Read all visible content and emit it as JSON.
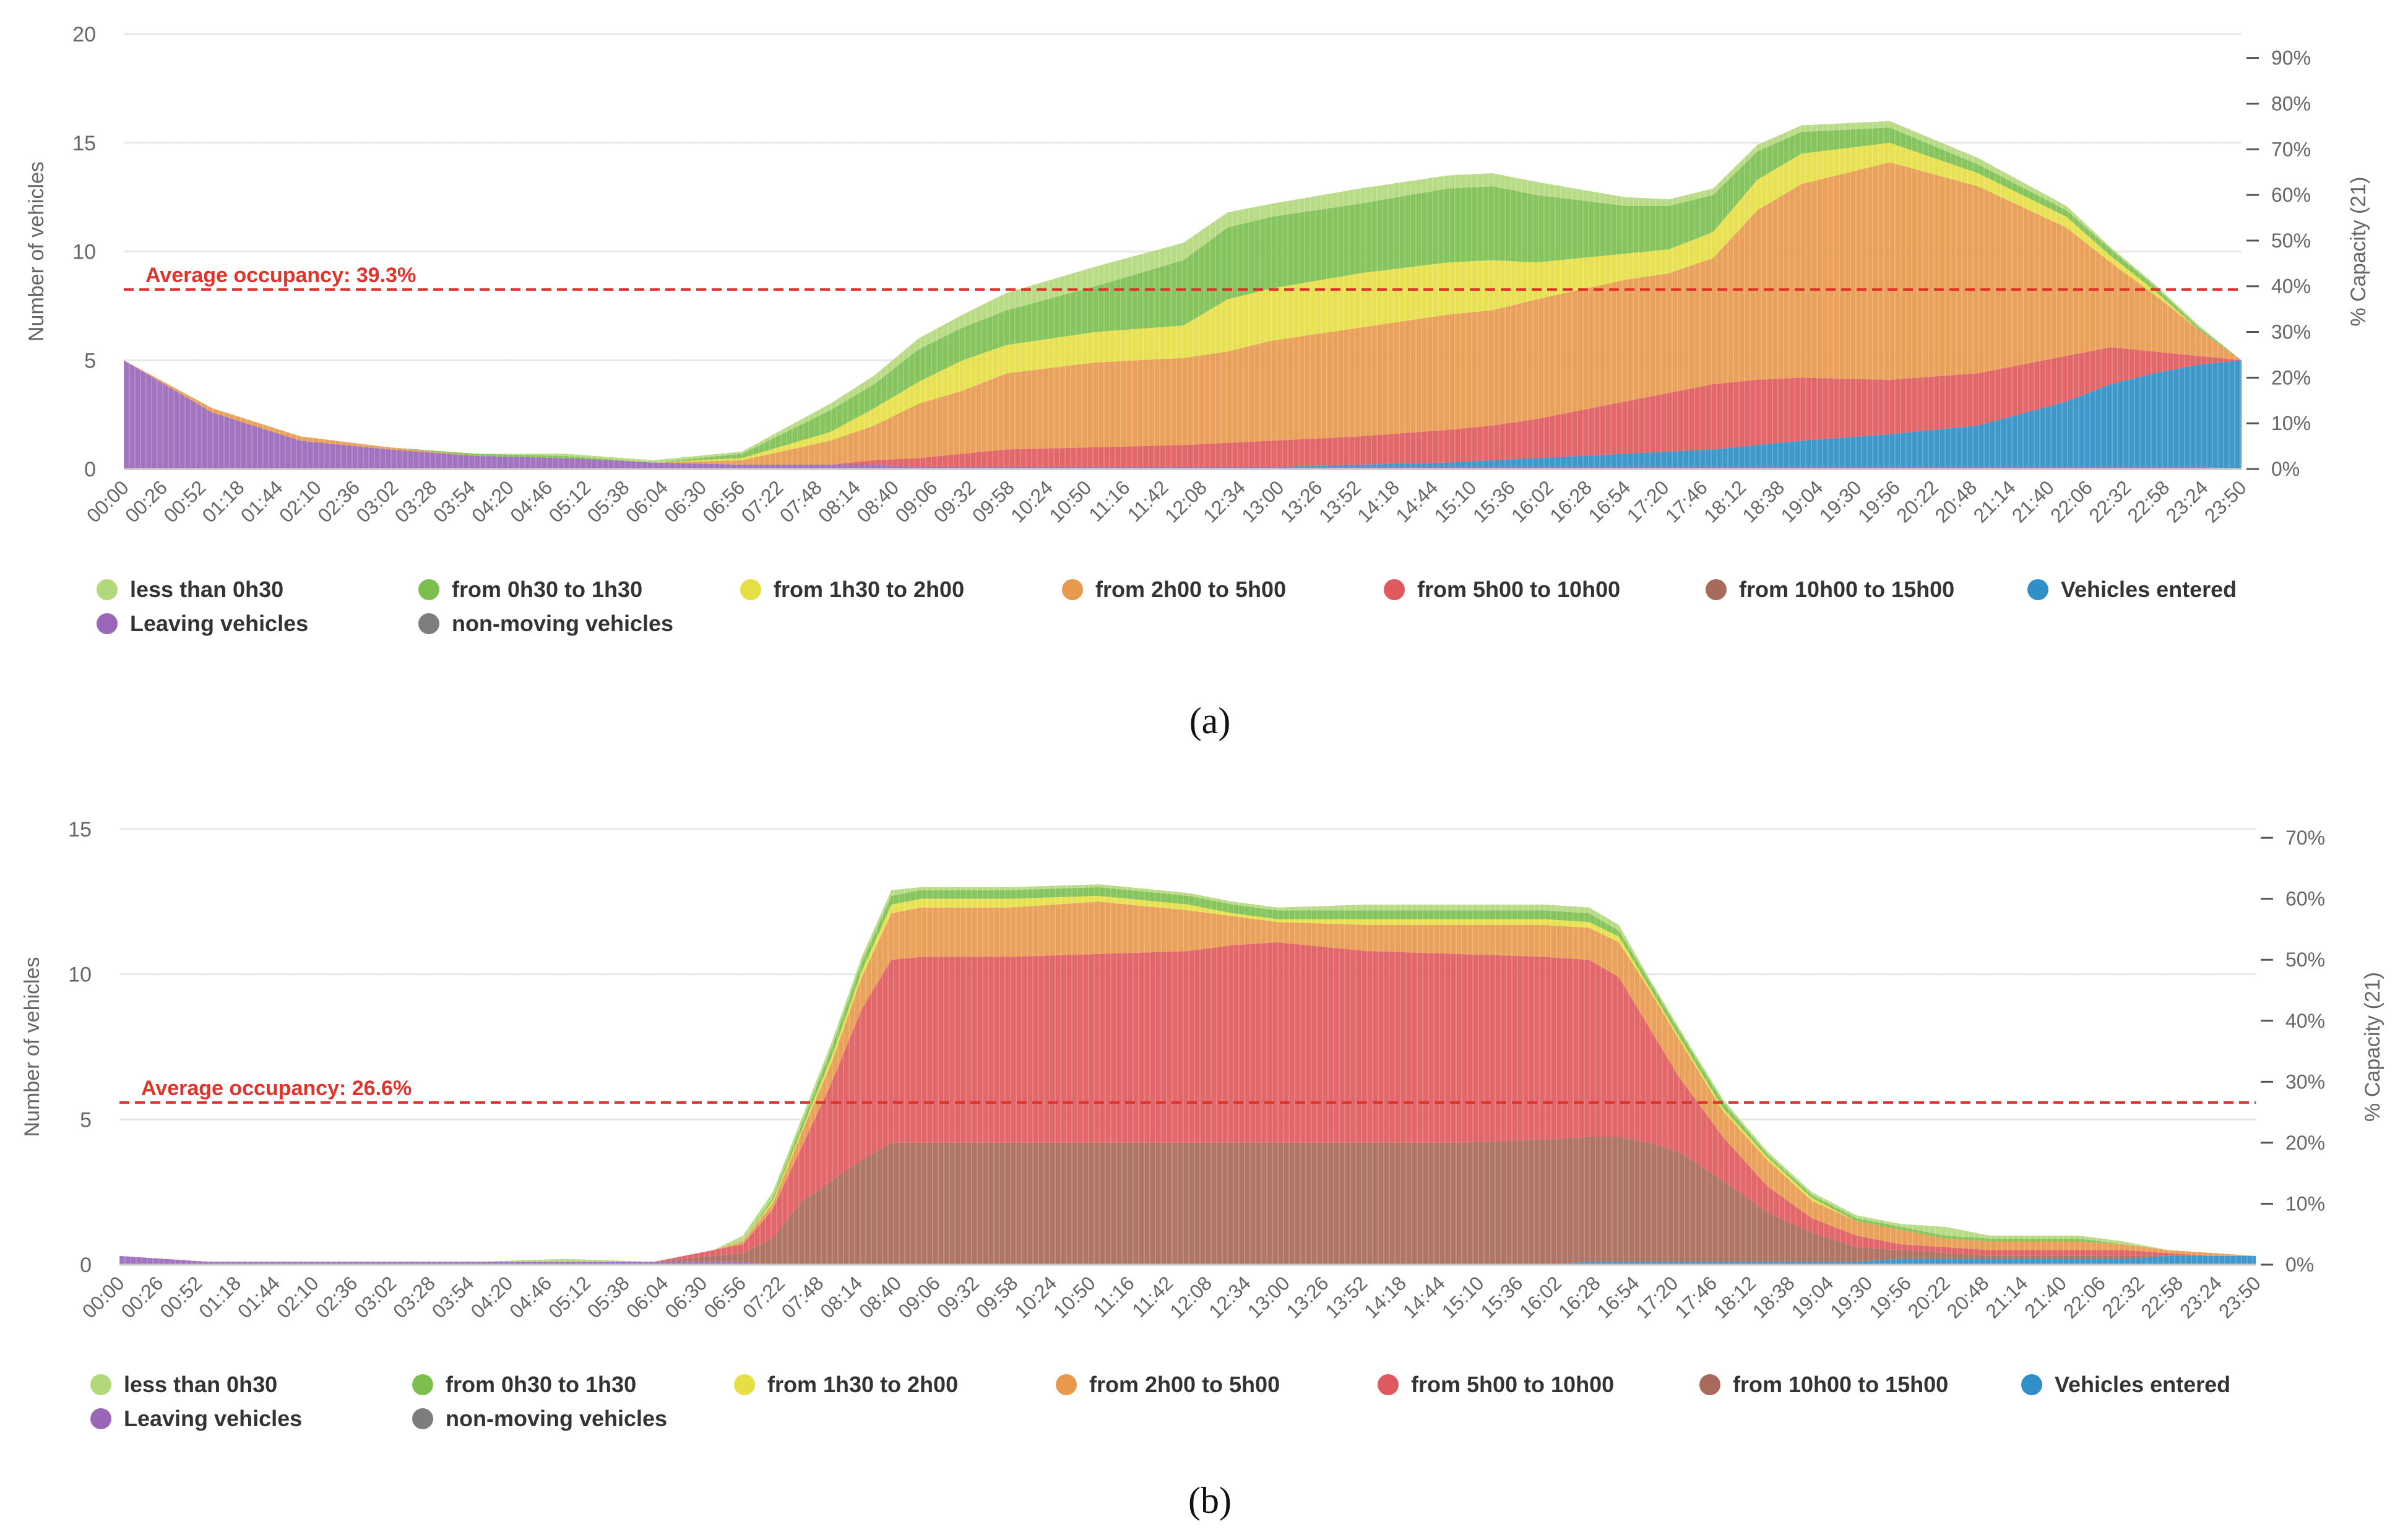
{
  "colors": {
    "less than 0h30": "#b3d87c",
    "from 0h30 to 1h30": "#7cbf4f",
    "from 1h30 to 2h00": "#e6de45",
    "from 2h00 to 5h00": "#e8994d",
    "from 5h00 to 10h00": "#de5a5e",
    "from 10h00 to 15h00": "#a86a5a",
    "Vehicles entered": "#2f8fc6",
    "Leaving vehicles": "#9a67b8",
    "non-moving vehicles": "#7d7d7d",
    "average_line": "#e0332b",
    "grid": "#e6e6e6",
    "axis_text": "#666666",
    "legend_text": "#333333"
  },
  "chart_data": [
    {
      "type": "area",
      "panel_label": "(a)",
      "title": "",
      "ylabel": "Number of vehicles",
      "y2label": "% Capacity (21)",
      "ylim": [
        0,
        20
      ],
      "yticks": [
        "0",
        "5",
        "10",
        "15",
        "20"
      ],
      "y2ticks": [
        "0%",
        "10%",
        "20%",
        "30%",
        "40%",
        "50%",
        "60%",
        "70%",
        "80%",
        "90%"
      ],
      "x_tick_labels": [
        "00:00",
        "00:26",
        "00:52",
        "01:18",
        "01:44",
        "02:10",
        "02:36",
        "03:02",
        "03:28",
        "03:54",
        "04:20",
        "04:46",
        "05:12",
        "05:38",
        "06:04",
        "06:30",
        "06:56",
        "07:22",
        "07:48",
        "08:14",
        "08:40",
        "09:06",
        "09:32",
        "09:58",
        "10:24",
        "10:50",
        "11:16",
        "11:42",
        "12:08",
        "12:34",
        "13:00",
        "13:26",
        "13:52",
        "14:18",
        "14:44",
        "15:10",
        "15:36",
        "16:02",
        "16:28",
        "16:54",
        "17:20",
        "17:46",
        "18:12",
        "18:38",
        "19:04",
        "19:30",
        "19:56",
        "20:22",
        "20:48",
        "21:14",
        "21:40",
        "22:06",
        "22:32",
        "22:58",
        "23:24",
        "23:50"
      ],
      "average_line": {
        "label": "Average occupancy: 39.3%",
        "percent": 39.3
      },
      "grid": true,
      "legend_position": "bottom",
      "legend": [
        "less than 0h30",
        "from 0h30 to 1h30",
        "from 1h30 to 2h00",
        "from 2h00 to 5h00",
        "from 5h00 to 10h00",
        "from 10h00 to 15h00",
        "Vehicles entered",
        "Leaving vehicles",
        "non-moving vehicles"
      ],
      "stack_order": [
        "Leaving vehicles",
        "Vehicles entered",
        "from 10h00 to 15h00",
        "from 5h00 to 10h00",
        "from 2h00 to 5h00",
        "from 1h30 to 2h00",
        "from 0h30 to 1h30",
        "less than 0h30"
      ],
      "x": [
        "00:00",
        "01:00",
        "02:00",
        "03:00",
        "04:00",
        "05:00",
        "06:00",
        "07:00",
        "08:00",
        "08:30",
        "09:00",
        "09:30",
        "10:00",
        "11:00",
        "12:00",
        "12:30",
        "13:00",
        "14:00",
        "15:00",
        "15:30",
        "16:00",
        "17:00",
        "17:30",
        "18:00",
        "18:30",
        "19:00",
        "20:00",
        "21:00",
        "22:00",
        "22:30",
        "23:00",
        "23:30",
        "23:59"
      ],
      "series": [
        {
          "name": "Leaving vehicles",
          "values": [
            5.0,
            2.6,
            1.3,
            0.9,
            0.6,
            0.5,
            0.3,
            0.2,
            0.2,
            0.2,
            0.1,
            0.1,
            0.1,
            0.1,
            0.1,
            0.1,
            0.1,
            0.1,
            0.1,
            0.1,
            0.1,
            0.1,
            0.1,
            0.1,
            0.1,
            0.1,
            0.1,
            0.1,
            0.1,
            0.1,
            0.1,
            0.1,
            0
          ]
        },
        {
          "name": "Vehicles entered",
          "values": [
            0,
            0,
            0,
            0,
            0,
            0,
            0,
            0,
            0,
            0,
            0,
            0,
            0,
            0,
            0,
            0,
            0,
            0.1,
            0.2,
            0.3,
            0.4,
            0.6,
            0.7,
            0.8,
            1.0,
            1.2,
            1.5,
            1.9,
            3.0,
            3.8,
            4.3,
            4.7,
            5.0
          ]
        },
        {
          "name": "from 10h00 to 15h00",
          "values": [
            0,
            0,
            0,
            0,
            0,
            0,
            0,
            0,
            0,
            0,
            0,
            0,
            0,
            0,
            0,
            0,
            0,
            0,
            0,
            0,
            0,
            0,
            0,
            0,
            0,
            0,
            0,
            0,
            0,
            0,
            0,
            0,
            0
          ]
        },
        {
          "name": "from 5h00 to 10h00",
          "values": [
            0,
            0,
            0,
            0,
            0,
            0,
            0,
            0,
            0,
            0.2,
            0.4,
            0.6,
            0.8,
            0.9,
            1.0,
            1.1,
            1.2,
            1.3,
            1.5,
            1.6,
            1.8,
            2.4,
            2.7,
            3.0,
            3.0,
            2.9,
            2.5,
            2.4,
            2.1,
            1.7,
            1.0,
            0.4,
            0
          ]
        },
        {
          "name": "from 2h00 to 5h00",
          "values": [
            0,
            0.2,
            0.2,
            0.1,
            0,
            0,
            0,
            0.2,
            1.1,
            1.6,
            2.5,
            2.9,
            3.5,
            3.9,
            4.0,
            4.2,
            4.6,
            5.0,
            5.3,
            5.3,
            5.5,
            5.6,
            5.5,
            5.8,
            7.8,
            8.9,
            10.0,
            8.6,
            5.9,
            3.9,
            2.6,
            1.2,
            0
          ]
        },
        {
          "name": "from 1h30 to 2h00",
          "values": [
            0,
            0,
            0,
            0,
            0,
            0,
            0,
            0.1,
            0.4,
            0.8,
            1.0,
            1.4,
            1.3,
            1.4,
            1.5,
            2.4,
            2.4,
            2.5,
            2.4,
            2.3,
            1.7,
            1.2,
            1.1,
            1.2,
            1.4,
            1.4,
            0.9,
            0.6,
            0.5,
            0.3,
            0.2,
            0,
            0
          ]
        },
        {
          "name": "from 0h30 to 1h30",
          "values": [
            0,
            0,
            0,
            0,
            0.1,
            0.1,
            0,
            0.2,
            1.0,
            1.1,
            1.5,
            1.5,
            1.6,
            2.1,
            3.0,
            3.3,
            3.3,
            3.2,
            3.4,
            3.4,
            3.1,
            2.2,
            2.0,
            1.7,
            1.3,
            1.0,
            0.7,
            0.4,
            0.3,
            0.3,
            0.2,
            0.1,
            0
          ]
        },
        {
          "name": "less than 0h30",
          "values": [
            0,
            0,
            0,
            0,
            0,
            0.1,
            0.1,
            0.1,
            0.3,
            0.4,
            0.5,
            0.6,
            0.8,
            0.9,
            0.8,
            0.7,
            0.6,
            0.7,
            0.6,
            0.6,
            0.6,
            0.4,
            0.3,
            0.3,
            0.3,
            0.3,
            0.3,
            0.3,
            0.2,
            0.1,
            0.1,
            0.1,
            0
          ]
        },
        {
          "name": "non-moving vehicles",
          "values": [
            0,
            0,
            0,
            0,
            0,
            0,
            0,
            0,
            0,
            0,
            0,
            0,
            0,
            0,
            0,
            0,
            0,
            0,
            0,
            0,
            0,
            0,
            0,
            0,
            0,
            0,
            0,
            0,
            0,
            0,
            0,
            0,
            0
          ]
        }
      ]
    },
    {
      "type": "area",
      "panel_label": "(b)",
      "title": "",
      "ylabel": "Number of vehicles",
      "y2label": "% Capacity (21)",
      "ylim": [
        0,
        15
      ],
      "yticks": [
        "0",
        "5",
        "10",
        "15"
      ],
      "y2ticks": [
        "0%",
        "10%",
        "20%",
        "30%",
        "40%",
        "50%",
        "60%",
        "70%"
      ],
      "x_tick_labels": [
        "00:00",
        "00:26",
        "00:52",
        "01:18",
        "01:44",
        "02:10",
        "02:36",
        "03:02",
        "03:28",
        "03:54",
        "04:20",
        "04:46",
        "05:12",
        "05:38",
        "06:04",
        "06:30",
        "06:56",
        "07:22",
        "07:48",
        "08:14",
        "08:40",
        "09:06",
        "09:32",
        "09:58",
        "10:24",
        "10:50",
        "11:16",
        "11:42",
        "12:08",
        "12:34",
        "13:00",
        "13:26",
        "13:52",
        "14:18",
        "14:44",
        "15:10",
        "15:36",
        "16:02",
        "16:28",
        "16:54",
        "17:20",
        "17:46",
        "18:12",
        "18:38",
        "19:04",
        "19:30",
        "19:56",
        "20:22",
        "20:48",
        "21:14",
        "21:40",
        "22:06",
        "22:32",
        "22:58",
        "23:24",
        "23:50"
      ],
      "average_line": {
        "label": "Average occupancy: 26.6%",
        "percent": 26.6
      },
      "grid": true,
      "legend_position": "bottom",
      "legend": [
        "less than 0h30",
        "from 0h30 to 1h30",
        "from 1h30 to 2h00",
        "from 2h00 to 5h00",
        "from 5h00 to 10h00",
        "from 10h00 to 15h00",
        "Vehicles entered",
        "Leaving vehicles",
        "non-moving vehicles"
      ],
      "stack_order": [
        "Leaving vehicles",
        "Vehicles entered",
        "from 10h00 to 15h00",
        "from 5h00 to 10h00",
        "from 2h00 to 5h00",
        "from 1h30 to 2h00",
        "from 0h30 to 1h30",
        "less than 0h30"
      ],
      "x": [
        "00:00",
        "01:00",
        "04:00",
        "05:00",
        "06:00",
        "06:40",
        "07:00",
        "07:20",
        "07:40",
        "08:00",
        "08:20",
        "08:40",
        "09:00",
        "10:00",
        "11:00",
        "12:00",
        "12:30",
        "13:00",
        "14:00",
        "15:00",
        "16:00",
        "16:30",
        "16:50",
        "17:10",
        "17:30",
        "18:00",
        "18:30",
        "19:00",
        "19:30",
        "20:00",
        "20:30",
        "21:00",
        "22:00",
        "22:30",
        "23:00",
        "23:30",
        "23:59"
      ],
      "series": [
        {
          "name": "Leaving vehicles",
          "values": [
            0.3,
            0.1,
            0.1,
            0.1,
            0.1,
            0.1,
            0.1,
            0,
            0,
            0,
            0,
            0,
            0,
            0,
            0,
            0,
            0,
            0,
            0,
            0,
            0,
            0,
            0,
            0,
            0,
            0,
            0,
            0,
            0,
            0,
            0,
            0,
            0,
            0,
            0,
            0,
            0
          ]
        },
        {
          "name": "Vehicles entered",
          "values": [
            0,
            0,
            0,
            0,
            0,
            0,
            0,
            0,
            0,
            0,
            0,
            0,
            0,
            0,
            0,
            0,
            0,
            0,
            0,
            0,
            0,
            0.1,
            0.1,
            0.1,
            0.1,
            0.1,
            0.1,
            0.1,
            0.1,
            0.2,
            0.2,
            0.2,
            0.2,
            0.2,
            0.3,
            0.3,
            0.3
          ]
        },
        {
          "name": "from 10h00 to 15h00",
          "values": [
            0,
            0,
            0,
            0,
            0,
            0.2,
            0.3,
            0.9,
            2.2,
            2.9,
            3.6,
            4.2,
            4.2,
            4.2,
            4.2,
            4.2,
            4.2,
            4.2,
            4.2,
            4.2,
            4.3,
            4.3,
            4.3,
            4.1,
            3.8,
            2.8,
            1.7,
            1.0,
            0.5,
            0.3,
            0.2,
            0.1,
            0.1,
            0.1,
            0,
            0,
            0
          ]
        },
        {
          "name": "from 5h00 to 10h00",
          "values": [
            0,
            0,
            0,
            0,
            0,
            0.2,
            0.3,
            1.0,
            1.9,
            3.4,
            5.2,
            6.3,
            6.4,
            6.4,
            6.5,
            6.6,
            6.8,
            6.9,
            6.6,
            6.5,
            6.3,
            6.1,
            5.5,
            4.0,
            2.6,
            1.5,
            0.9,
            0.5,
            0.4,
            0.2,
            0.2,
            0.2,
            0.2,
            0.2,
            0.1,
            0,
            0
          ]
        },
        {
          "name": "from 2h00 to 5h00",
          "values": [
            0,
            0,
            0,
            0,
            0,
            0,
            0.1,
            0.2,
            0.5,
            0.7,
            1.1,
            1.6,
            1.7,
            1.7,
            1.8,
            1.4,
            1.0,
            0.7,
            0.9,
            1.0,
            1.1,
            1.1,
            1.2,
            1.3,
            1.3,
            0.9,
            0.9,
            0.6,
            0.5,
            0.5,
            0.3,
            0.3,
            0.3,
            0.2,
            0.1,
            0.1,
            0
          ]
        },
        {
          "name": "from 1h30 to 2h00",
          "values": [
            0,
            0,
            0,
            0,
            0,
            0,
            0,
            0.1,
            0.1,
            0.2,
            0.2,
            0.3,
            0.3,
            0.3,
            0.2,
            0.2,
            0.1,
            0.1,
            0.2,
            0.2,
            0.2,
            0.2,
            0.2,
            0.1,
            0.1,
            0.1,
            0.1,
            0.1,
            0,
            0,
            0,
            0,
            0,
            0,
            0,
            0,
            0
          ]
        },
        {
          "name": "from 0h30 to 1h30",
          "values": [
            0,
            0,
            0,
            0,
            0,
            0,
            0,
            0.1,
            0.2,
            0.3,
            0.3,
            0.3,
            0.3,
            0.3,
            0.3,
            0.3,
            0.3,
            0.3,
            0.3,
            0.3,
            0.3,
            0.3,
            0.2,
            0.2,
            0.2,
            0.2,
            0.1,
            0.1,
            0.1,
            0.1,
            0.1,
            0.1,
            0.1,
            0,
            0,
            0,
            0
          ]
        },
        {
          "name": "less than 0h30",
          "values": [
            0,
            0,
            0,
            0.1,
            0,
            0,
            0.2,
            0.2,
            0.2,
            0.2,
            0.2,
            0.2,
            0.1,
            0.1,
            0.1,
            0.1,
            0.1,
            0.1,
            0.2,
            0.2,
            0.2,
            0.2,
            0.2,
            0.1,
            0.1,
            0.1,
            0.1,
            0.1,
            0.1,
            0.1,
            0.3,
            0.1,
            0.1,
            0.1,
            0,
            0,
            0
          ]
        },
        {
          "name": "non-moving vehicles",
          "values": [
            0,
            0,
            0,
            0,
            0,
            0,
            0,
            0,
            0,
            0,
            0,
            0,
            0,
            0,
            0,
            0,
            0,
            0,
            0,
            0,
            0,
            0,
            0,
            0,
            0,
            0,
            0,
            0,
            0,
            0,
            0,
            0,
            0,
            0,
            0,
            0,
            0
          ]
        }
      ]
    }
  ]
}
